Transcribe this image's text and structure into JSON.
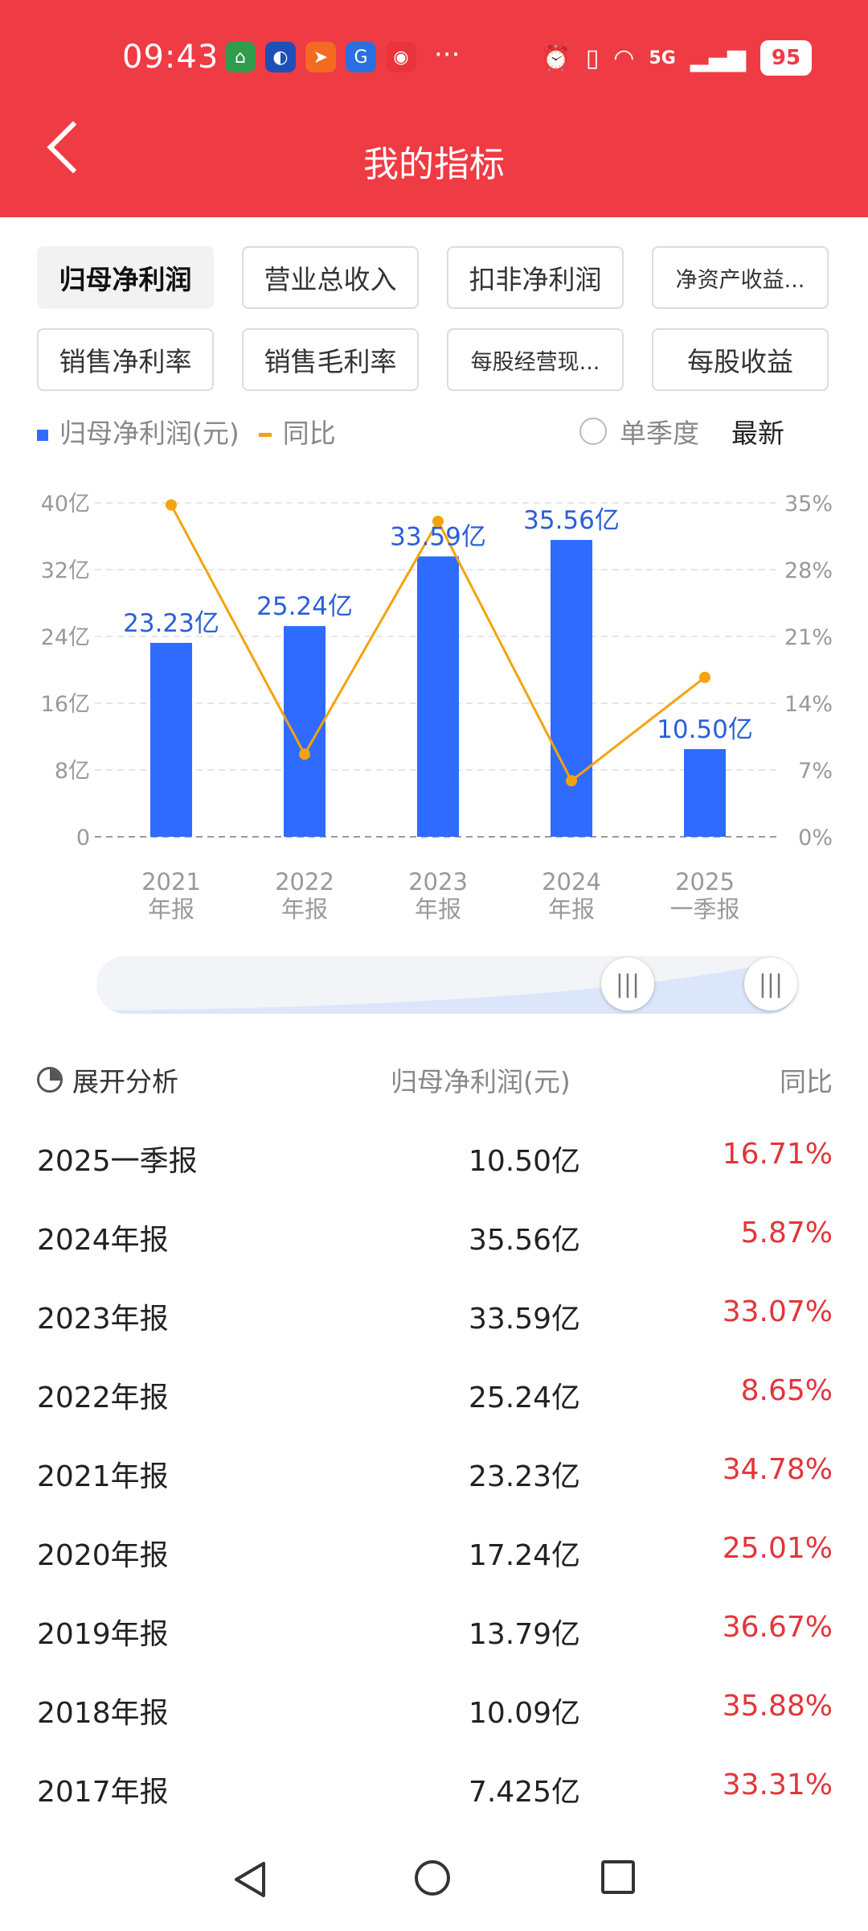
{
  "status_bar": {
    "time": "09:43",
    "more": "···",
    "network": "5G",
    "battery": "95"
  },
  "header": {
    "title": "我的指标"
  },
  "tabs": [
    {
      "label": "归母净利润",
      "active": true
    },
    {
      "label": "营业总收入"
    },
    {
      "label": "扣非净利润"
    },
    {
      "label": "净资产收益..."
    },
    {
      "label": "销售净利率"
    },
    {
      "label": "销售毛利率"
    },
    {
      "label": "每股经营现..."
    },
    {
      "label": "每股收益"
    }
  ],
  "legend": {
    "bar": "归母净利润(元)",
    "line": "同比",
    "single_quarter": "单季度",
    "latest": "最新"
  },
  "chart_data": {
    "type": "bar",
    "categories": [
      "2021\n年报",
      "2022\n年报",
      "2023\n年报",
      "2024\n年报",
      "2025\n一季报"
    ],
    "series": [
      {
        "name": "归母净利润(元)",
        "type": "bar",
        "axis": "left",
        "values": [
          23.23,
          25.24,
          33.59,
          35.56,
          10.5
        ],
        "labels": [
          "23.23亿",
          "25.24亿",
          "33.59亿",
          "35.56亿",
          "10.50亿"
        ],
        "color": "#2f6bff"
      },
      {
        "name": "同比",
        "type": "line",
        "axis": "right",
        "values": [
          34.78,
          8.65,
          33.07,
          5.87,
          16.71
        ],
        "color": "#f5a20f"
      }
    ],
    "y_left": {
      "ticks": [
        "0",
        "8亿",
        "16亿",
        "24亿",
        "32亿",
        "40亿"
      ],
      "range": [
        0,
        40
      ]
    },
    "y_right": {
      "ticks": [
        "0%",
        "7%",
        "14%",
        "21%",
        "28%",
        "35%"
      ],
      "range": [
        0,
        35
      ]
    },
    "grid": true
  },
  "table": {
    "headers": [
      "展开分析",
      "归母净利润(元)",
      "同比"
    ],
    "rows": [
      {
        "period": "2025一季报",
        "value": "10.50亿",
        "yoy": "16.71%"
      },
      {
        "period": "2024年报",
        "value": "35.56亿",
        "yoy": "5.87%"
      },
      {
        "period": "2023年报",
        "value": "33.59亿",
        "yoy": "33.07%"
      },
      {
        "period": "2022年报",
        "value": "25.24亿",
        "yoy": "8.65%"
      },
      {
        "period": "2021年报",
        "value": "23.23亿",
        "yoy": "34.78%"
      },
      {
        "period": "2020年报",
        "value": "17.24亿",
        "yoy": "25.01%"
      },
      {
        "period": "2019年报",
        "value": "13.79亿",
        "yoy": "36.67%"
      },
      {
        "period": "2018年报",
        "value": "10.09亿",
        "yoy": "35.88%"
      },
      {
        "period": "2017年报",
        "value": "7.425亿",
        "yoy": "33.31%"
      }
    ]
  },
  "colors": {
    "header_bg": "#ef3b44",
    "bar": "#2f6bff",
    "line": "#f5a20f",
    "yoy_text": "#e2353b"
  }
}
